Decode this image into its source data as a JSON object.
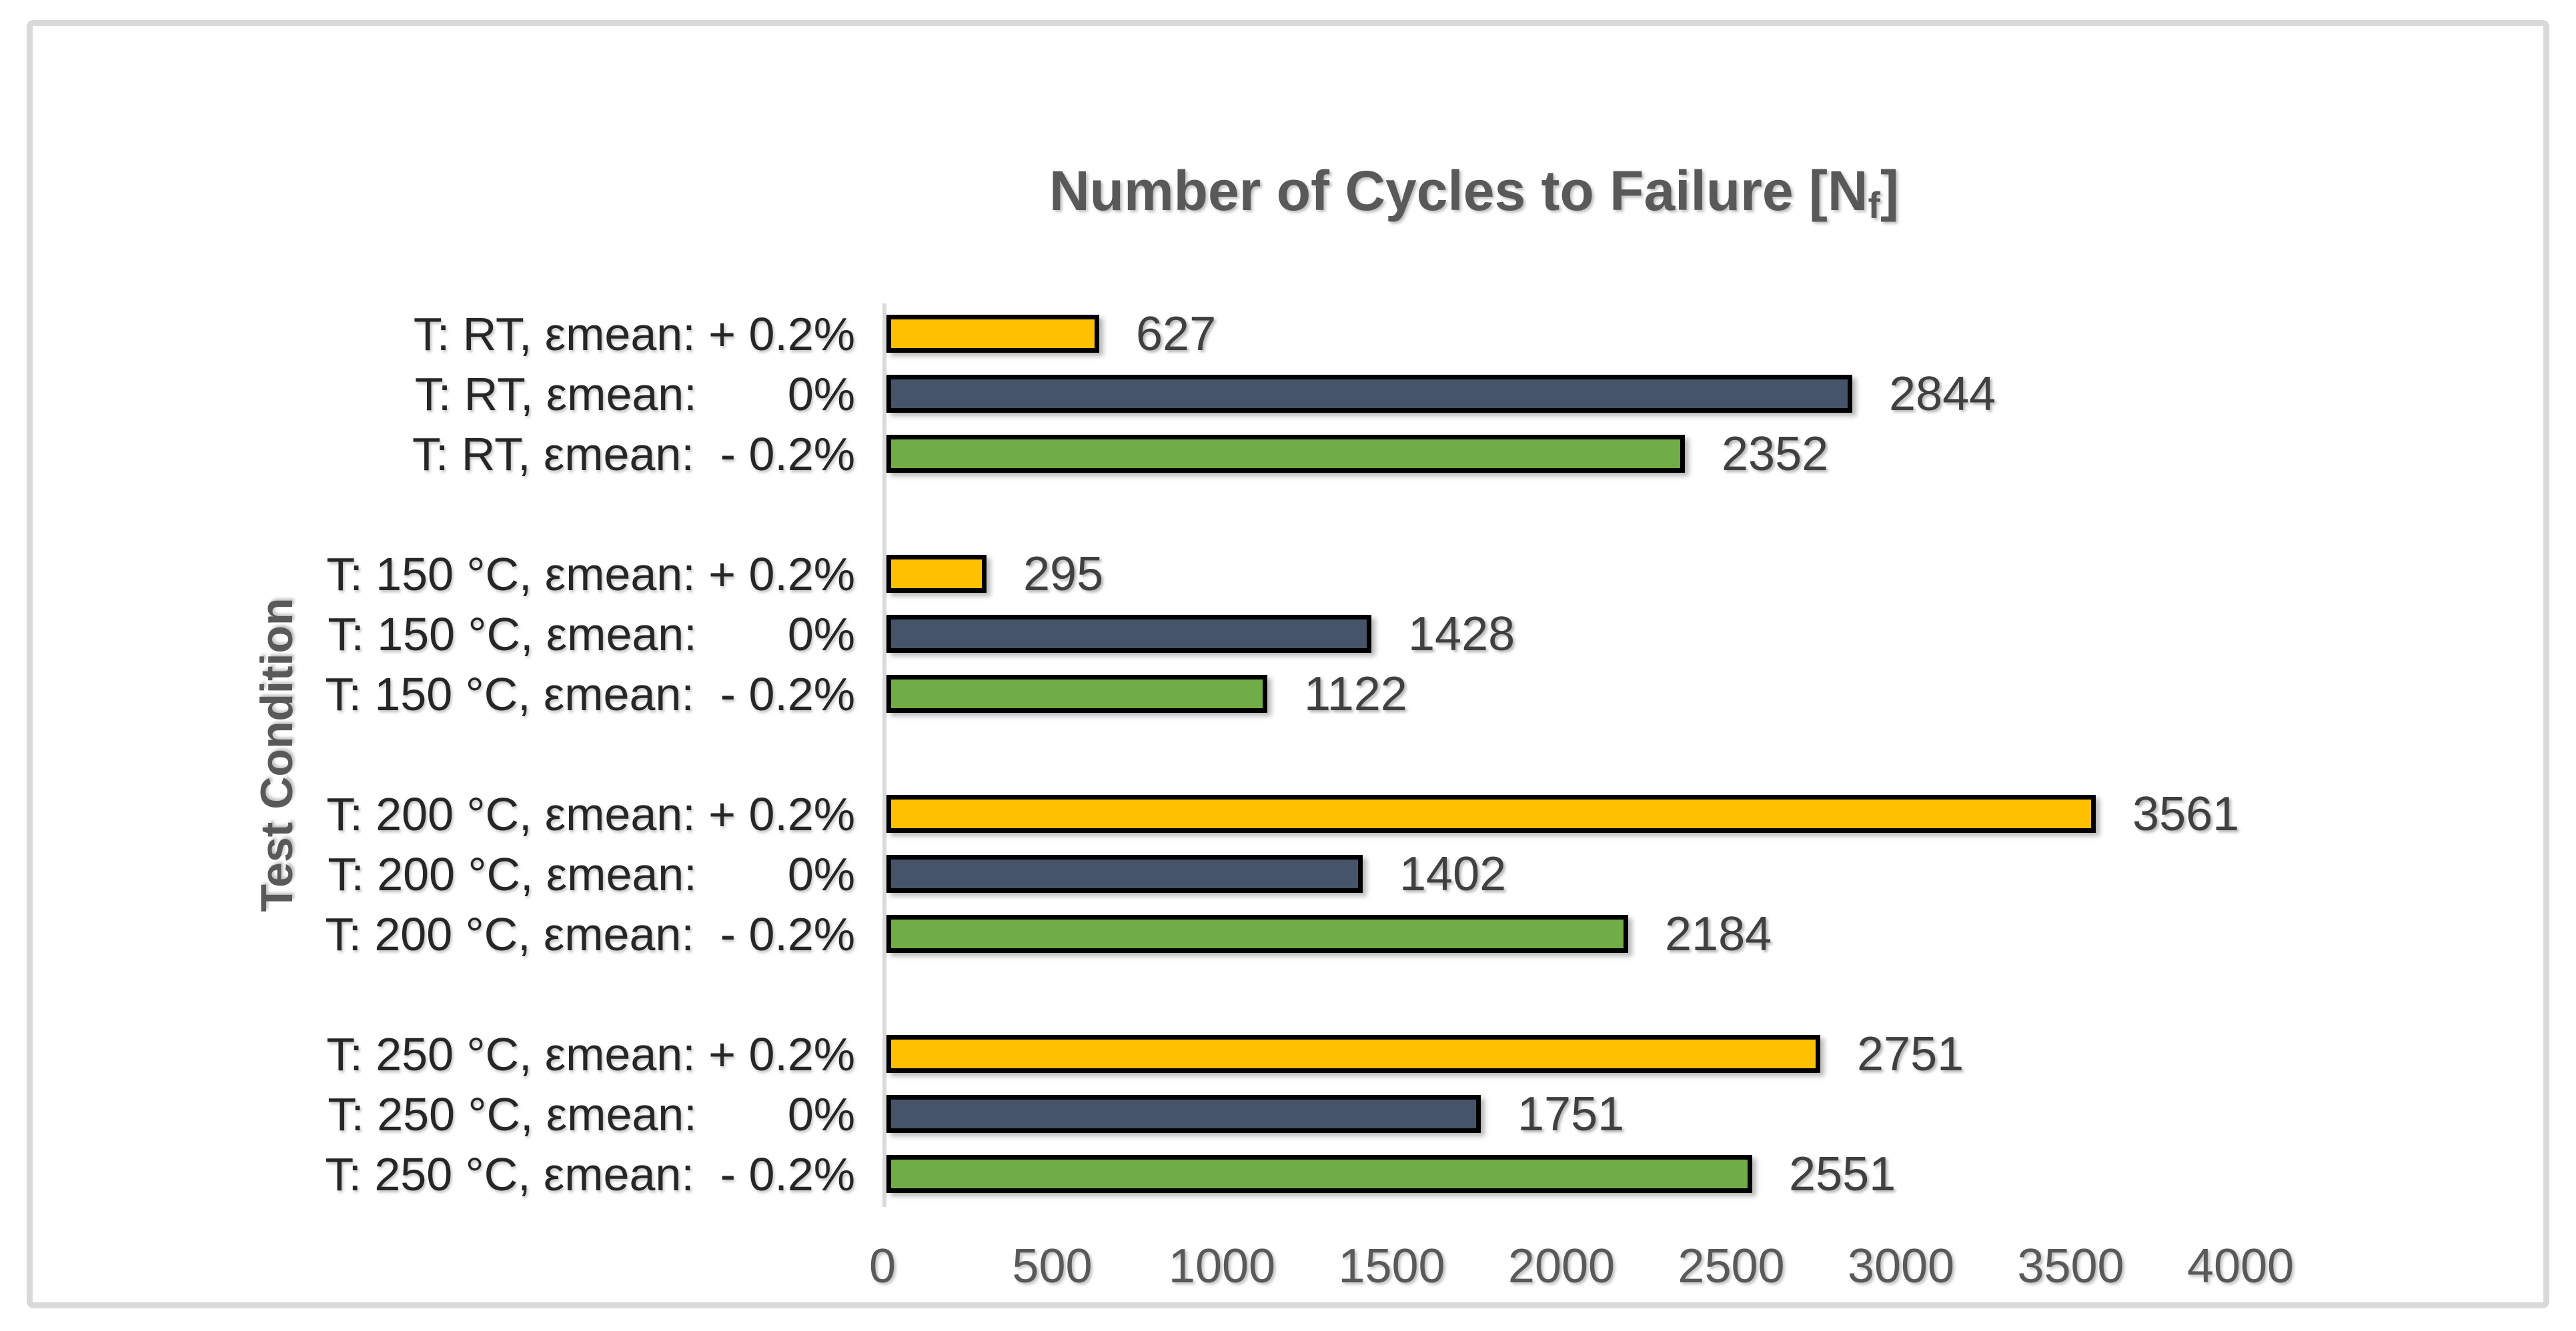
{
  "chart_data": {
    "type": "bar",
    "orientation": "horizontal",
    "title": {
      "main": "Number of Cycles to Failure [N",
      "subscript": "f",
      "suffix": "]"
    },
    "ylabel": "Test Condition",
    "xlabel": "",
    "xlim": [
      0,
      4000
    ],
    "xticks": [
      "0",
      "500",
      "1000",
      "1500",
      "2000",
      "2500",
      "3000",
      "3500",
      "4000"
    ],
    "grid": false,
    "legend": false,
    "colors": {
      "plus_0_2": "#FFC000",
      "zero": "#455469",
      "minus_0_2": "#70AD47",
      "bar_border": "#000000",
      "axis_line": "#D9D9D9",
      "frame_border": "#D9D9D9",
      "title_text": "#595959",
      "category_text": "#262626",
      "value_text": "#404040",
      "tick_text": "#595959"
    },
    "groups": [
      {
        "temperature": "RT",
        "bars": [
          {
            "label": "T: RT, εmean: + 0.2%",
            "value": 627,
            "color_key": "plus_0_2"
          },
          {
            "label": "T: RT, εmean:       0%",
            "value": 2844,
            "color_key": "zero"
          },
          {
            "label": "T: RT, εmean:  - 0.2%",
            "value": 2352,
            "color_key": "minus_0_2"
          }
        ]
      },
      {
        "temperature": "150 °C",
        "bars": [
          {
            "label": "T: 150 °C, εmean: + 0.2%",
            "value": 295,
            "color_key": "plus_0_2"
          },
          {
            "label": "T: 150 °C, εmean:       0%",
            "value": 1428,
            "color_key": "zero"
          },
          {
            "label": "T: 150 °C, εmean:  - 0.2%",
            "value": 1122,
            "color_key": "minus_0_2"
          }
        ]
      },
      {
        "temperature": "200 °C",
        "bars": [
          {
            "label": "T: 200 °C, εmean: + 0.2%",
            "value": 3561,
            "color_key": "plus_0_2"
          },
          {
            "label": "T: 200 °C, εmean:       0%",
            "value": 1402,
            "color_key": "zero"
          },
          {
            "label": "T: 200 °C, εmean:  - 0.2%",
            "value": 2184,
            "color_key": "minus_0_2"
          }
        ]
      },
      {
        "temperature": "250 °C",
        "bars": [
          {
            "label": "T: 250 °C, εmean: + 0.2%",
            "value": 2751,
            "color_key": "plus_0_2"
          },
          {
            "label": "T: 250 °C, εmean:       0%",
            "value": 1751,
            "color_key": "zero"
          },
          {
            "label": "T: 250 °C, εmean:  - 0.2%",
            "value": 2551,
            "color_key": "minus_0_2"
          }
        ]
      }
    ]
  }
}
